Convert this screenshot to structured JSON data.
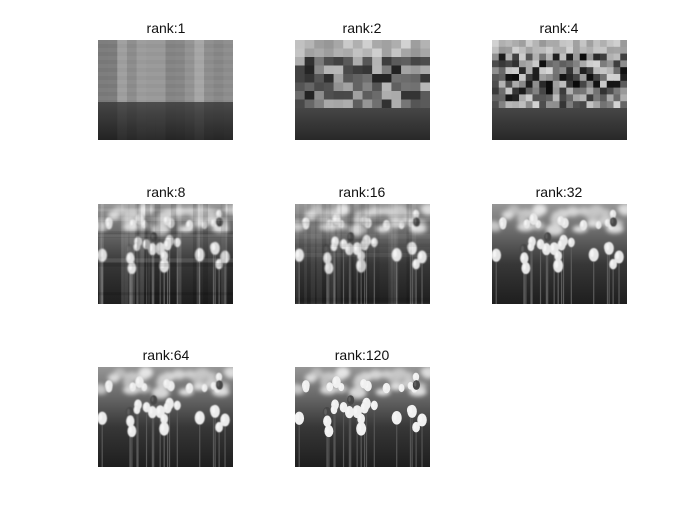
{
  "figure": {
    "panels": [
      {
        "title": "rank:1",
        "rank": 1
      },
      {
        "title": "rank:2",
        "rank": 2
      },
      {
        "title": "rank:4",
        "rank": 4
      },
      {
        "title": "rank:8",
        "rank": 8
      },
      {
        "title": "rank:16",
        "rank": 16
      },
      {
        "title": "rank:32",
        "rank": 32
      },
      {
        "title": "rank:64",
        "rank": 64
      },
      {
        "title": "rank:120",
        "rank": 120
      }
    ]
  }
}
